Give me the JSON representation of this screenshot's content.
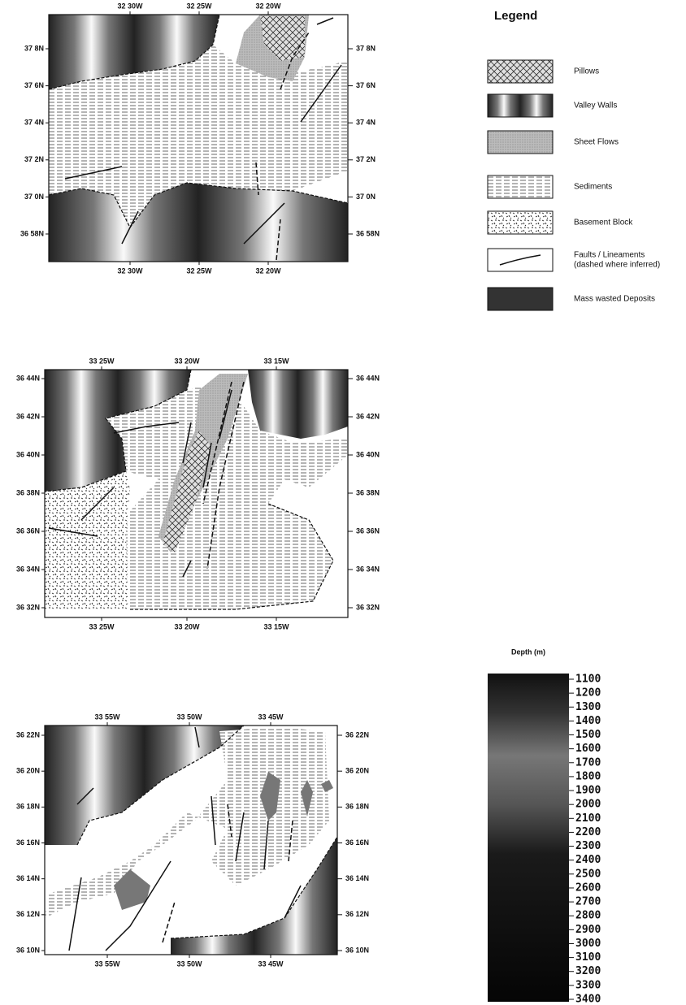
{
  "maps": [
    {
      "top_ticks": [
        "32 30W",
        "32 25W",
        "32 20W"
      ],
      "bottom_ticks": [
        "32 30W",
        "32 25W",
        "32 20W"
      ],
      "left_ticks": [
        "37 8N",
        "37 6N",
        "37 4N",
        "37 2N",
        "37 0N",
        "36 58N"
      ],
      "right_ticks": [
        "37 8N",
        "37 6N",
        "37 4N",
        "37 2N",
        "37 0N",
        "36 58N"
      ]
    },
    {
      "top_ticks": [
        "33 25W",
        "33 20W",
        "33 15W"
      ],
      "bottom_ticks": [
        "33 25W",
        "33 20W",
        "33 15W"
      ],
      "left_ticks": [
        "36 44N",
        "36 42N",
        "36 40N",
        "36 38N",
        "36 36N",
        "36 34N",
        "36 32N"
      ],
      "right_ticks": [
        "36 44N",
        "36 42N",
        "36 40N",
        "36 38N",
        "36 36N",
        "36 34N",
        "36 32N"
      ]
    },
    {
      "top_ticks": [
        "33 55W",
        "33 50W",
        "33 45W"
      ],
      "bottom_ticks": [
        "33 55W",
        "33 50W",
        "33 45W"
      ],
      "left_ticks": [
        "36 22N",
        "36 20N",
        "36 18N",
        "36 16N",
        "36 14N",
        "36 12N",
        "36 10N"
      ],
      "right_ticks": [
        "36 22N",
        "36 20N",
        "36 18N",
        "36 16N",
        "36 14N",
        "36 12N",
        "36 10N"
      ]
    }
  ],
  "legend": {
    "title": "Legend",
    "items": [
      {
        "label": "Pillows"
      },
      {
        "label": "Valley Walls"
      },
      {
        "label": "Sheet Flows"
      },
      {
        "label": "Sediments"
      },
      {
        "label": "Basement Block"
      },
      {
        "label": "Faults / Lineaments",
        "note": "(dashed where inferred)"
      },
      {
        "label": "Mass wasted Deposits"
      }
    ]
  },
  "depth_scale": {
    "title": "Depth (m)",
    "labels": [
      "1100",
      "1200",
      "1300",
      "1400",
      "1500",
      "1600",
      "1700",
      "1800",
      "1900",
      "2000",
      "2100",
      "2200",
      "2300",
      "2400",
      "2500",
      "2600",
      "2700",
      "2800",
      "2900",
      "3000",
      "3100",
      "3200",
      "3300",
      "3400"
    ]
  }
}
